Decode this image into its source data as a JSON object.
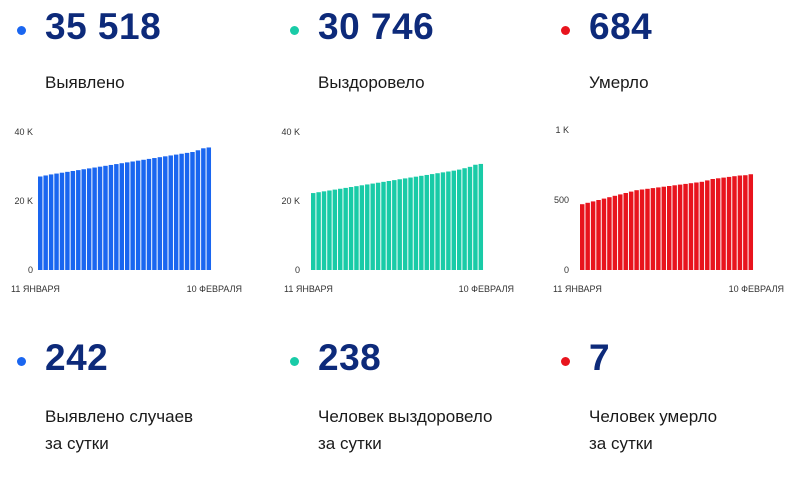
{
  "colors": {
    "cases": "#1a66f0",
    "recovered": "#19cba7",
    "deaths": "#e8141d",
    "number": "#0d2a7a"
  },
  "totals": [
    {
      "value": "35 518",
      "label": "Выявлено"
    },
    {
      "value": "30 746",
      "label": "Выздоровело"
    },
    {
      "value": "684",
      "label": "Умерло"
    }
  ],
  "daily": [
    {
      "value": "242",
      "line1": "Выявлено случаев",
      "line2": "за сутки"
    },
    {
      "value": "238",
      "line1": "Человек выздоровело",
      "line2": "за сутки"
    },
    {
      "value": "7",
      "line1": "Человек умерло",
      "line2": "за сутки"
    }
  ],
  "chart_data": [
    {
      "type": "bar",
      "x_start": "11 ЯНВАРЯ",
      "x_end": "10 ФЕВРАЛЯ",
      "y_ticks": [
        "0",
        "20 K",
        "40 K"
      ],
      "ylim": [
        0,
        40000
      ],
      "grid": false,
      "values": [
        27100,
        27400,
        27700,
        27950,
        28200,
        28450,
        28700,
        28950,
        29200,
        29450,
        29700,
        29950,
        30200,
        30450,
        30700,
        30950,
        31200,
        31450,
        31700,
        31950,
        32200,
        32450,
        32700,
        32950,
        33200,
        33450,
        33700,
        33950,
        34200,
        34700,
        35276,
        35518
      ]
    },
    {
      "type": "bar",
      "x_start": "11 ЯНВАРЯ",
      "x_end": "10 ФЕВРАЛЯ",
      "y_ticks": [
        "0",
        "20 K",
        "40 K"
      ],
      "ylim": [
        0,
        40000
      ],
      "grid": false,
      "values": [
        22300,
        22550,
        22800,
        23050,
        23300,
        23550,
        23800,
        24050,
        24300,
        24550,
        24800,
        25050,
        25300,
        25550,
        25800,
        26050,
        26300,
        26550,
        26800,
        27050,
        27300,
        27550,
        27800,
        28050,
        28300,
        28550,
        28800,
        29100,
        29500,
        29900,
        30508,
        30746
      ]
    },
    {
      "type": "bar",
      "x_start": "11 ЯНВАРЯ",
      "x_end": "10 ФЕВРАЛЯ",
      "y_ticks": [
        "0",
        "500",
        "1 K"
      ],
      "ylim": [
        0,
        1000
      ],
      "grid": false,
      "values": [
        470,
        480,
        490,
        500,
        510,
        520,
        530,
        540,
        550,
        560,
        570,
        575,
        580,
        585,
        590,
        595,
        600,
        605,
        610,
        615,
        620,
        625,
        630,
        640,
        650,
        655,
        660,
        665,
        670,
        675,
        677,
        684
      ]
    }
  ]
}
